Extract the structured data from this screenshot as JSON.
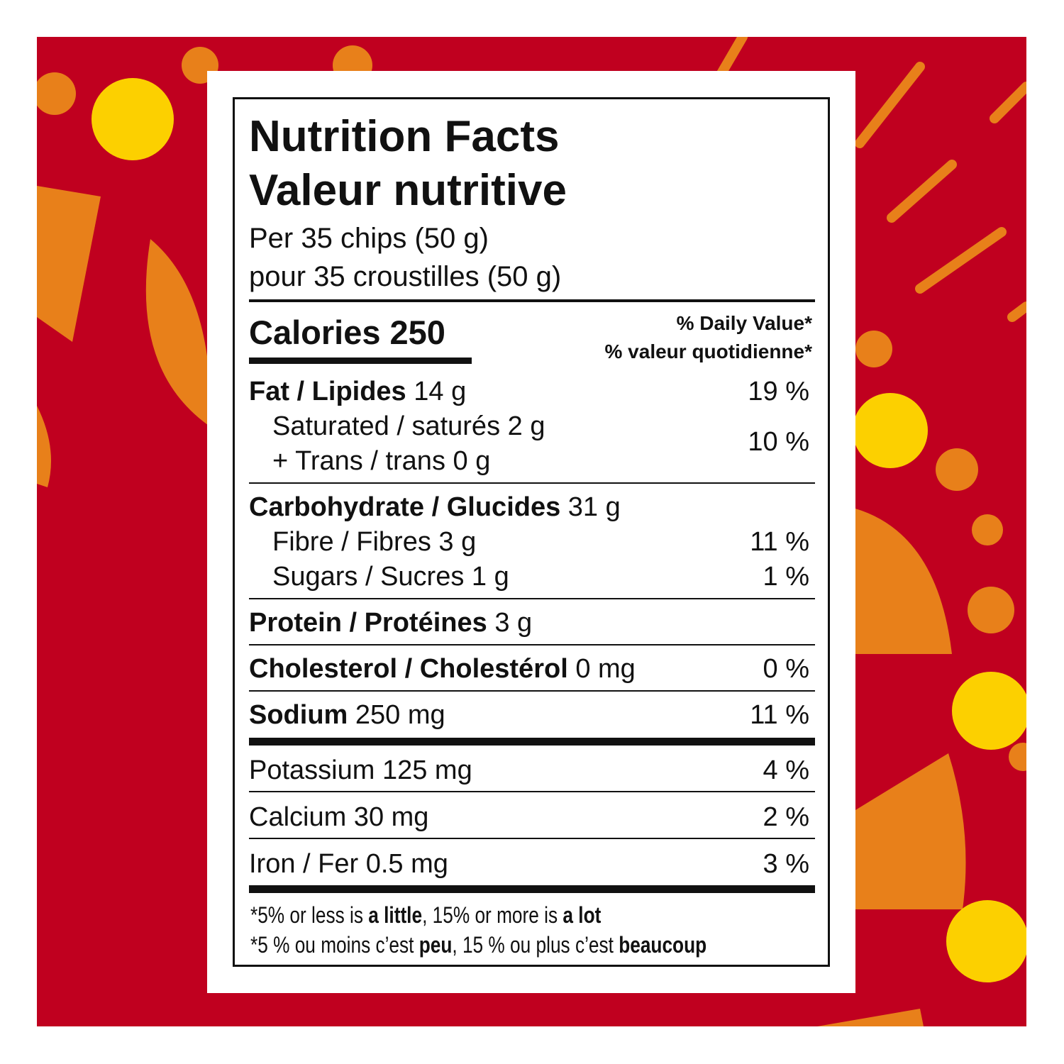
{
  "colors": {
    "background_red": "#c0001f",
    "orange": "#e8801a",
    "yellow": "#fcd000"
  },
  "header": {
    "title_en": "Nutrition Facts",
    "title_fr": "Valeur nutritive",
    "serving_en": "Per 35 chips (50 g)",
    "serving_fr": "pour 35 croustilles (50 g)"
  },
  "calories": {
    "label": "Calories 250",
    "dv_en": "% Daily Value*",
    "dv_fr": "% valeur quotidienne*"
  },
  "nutrients": [
    {
      "name": "Fat / Lipides",
      "amount": "14 g",
      "dv": "19 %"
    },
    {
      "name": "Saturated / saturés 2 g",
      "amount": "",
      "dv": "10 %"
    },
    {
      "name": "+ Trans / trans 0 g",
      "amount": "",
      "dv": ""
    },
    {
      "name": "Carbohydrate / Glucides",
      "amount": "31 g",
      "dv": ""
    },
    {
      "name": "Fibre / Fibres 3 g",
      "amount": "",
      "dv": "11 %"
    },
    {
      "name": "Sugars / Sucres 1 g",
      "amount": "",
      "dv": "1 %"
    },
    {
      "name": "Protein / Protéines",
      "amount": "3 g",
      "dv": ""
    },
    {
      "name": "Cholesterol / Cholestérol",
      "amount": "0 mg",
      "dv": "0 %"
    },
    {
      "name": "Sodium",
      "amount": "250 mg",
      "dv": "11 %"
    },
    {
      "name": "Potassium 125 mg",
      "amount": "",
      "dv": "4 %"
    },
    {
      "name": "Calcium 30 mg",
      "amount": "",
      "dv": "2 %"
    },
    {
      "name": "Iron / Fer 0.5 mg",
      "amount": "",
      "dv": "3 %"
    }
  ],
  "footnote": {
    "en": [
      "*5% or less is ",
      "a little",
      ", 15% or more is ",
      "a lot"
    ],
    "fr": [
      "*5 % ou moins c’est ",
      "peu",
      ", 15 % ou plus c’est ",
      "beaucoup"
    ]
  }
}
